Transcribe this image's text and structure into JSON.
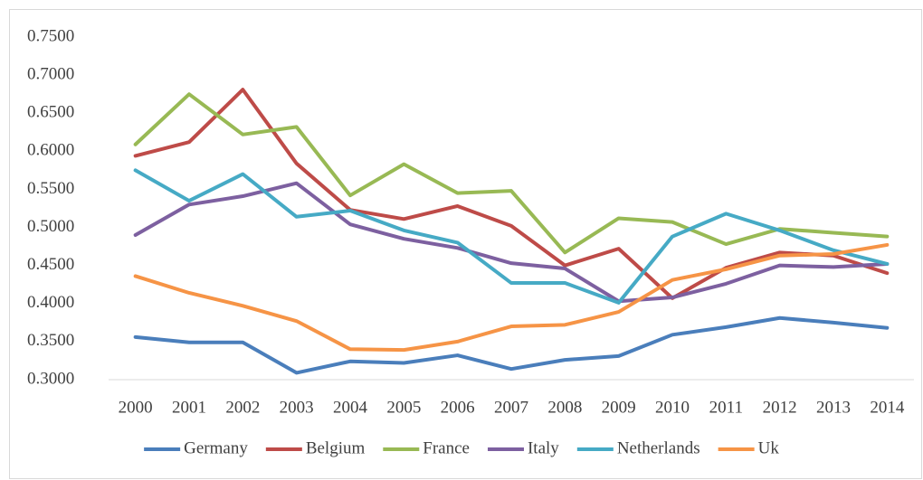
{
  "chart_data": {
    "type": "line",
    "categories": [
      "2000",
      "2001",
      "2002",
      "2003",
      "2004",
      "2005",
      "2006",
      "2007",
      "2008",
      "2009",
      "2010",
      "2011",
      "2012",
      "2013",
      "2014"
    ],
    "series": [
      {
        "name": "Germany",
        "color": "#4a7ebb",
        "values": [
          0.356,
          0.349,
          0.349,
          0.309,
          0.324,
          0.322,
          0.332,
          0.314,
          0.326,
          0.331,
          0.359,
          0.369,
          0.381,
          0.375,
          0.368
        ]
      },
      {
        "name": "Belgium",
        "color": "#be4b48",
        "values": [
          0.594,
          0.612,
          0.681,
          0.584,
          0.523,
          0.511,
          0.528,
          0.502,
          0.45,
          0.472,
          0.407,
          0.447,
          0.467,
          0.463,
          0.44
        ]
      },
      {
        "name": "France",
        "color": "#98b954",
        "values": [
          0.609,
          0.675,
          0.622,
          0.632,
          0.542,
          0.583,
          0.545,
          0.548,
          0.467,
          0.512,
          0.507,
          0.478,
          0.498,
          0.493,
          0.488
        ]
      },
      {
        "name": "Italy",
        "color": "#7d60a0",
        "values": [
          0.49,
          0.53,
          0.541,
          0.558,
          0.504,
          0.485,
          0.473,
          0.453,
          0.446,
          0.403,
          0.408,
          0.426,
          0.45,
          0.448,
          0.452
        ]
      },
      {
        "name": "Netherlands",
        "color": "#46aac5",
        "values": [
          0.575,
          0.535,
          0.57,
          0.514,
          0.522,
          0.496,
          0.48,
          0.427,
          0.427,
          0.401,
          0.488,
          0.518,
          0.496,
          0.47,
          0.452
        ]
      },
      {
        "name": "Uk",
        "color": "#f69446",
        "values": [
          0.436,
          0.414,
          0.397,
          0.377,
          0.34,
          0.339,
          0.35,
          0.37,
          0.372,
          0.389,
          0.431,
          0.445,
          0.463,
          0.465,
          0.477
        ]
      }
    ],
    "ylim": [
      0.3,
      0.75
    ],
    "yticks": [
      {
        "value": 0.3,
        "label": "0.3000"
      },
      {
        "value": 0.35,
        "label": "0.3500"
      },
      {
        "value": 0.4,
        "label": "0.4000"
      },
      {
        "value": 0.45,
        "label": "0.4500"
      },
      {
        "value": 0.5,
        "label": "0.5000"
      },
      {
        "value": 0.55,
        "label": "0.5500"
      },
      {
        "value": 0.6,
        "label": "0.6000"
      },
      {
        "value": 0.65,
        "label": "0.6500"
      },
      {
        "value": 0.7,
        "label": "0.7000"
      },
      {
        "value": 0.75,
        "label": "0.7500"
      }
    ],
    "grid": false,
    "legend": "bottom"
  }
}
